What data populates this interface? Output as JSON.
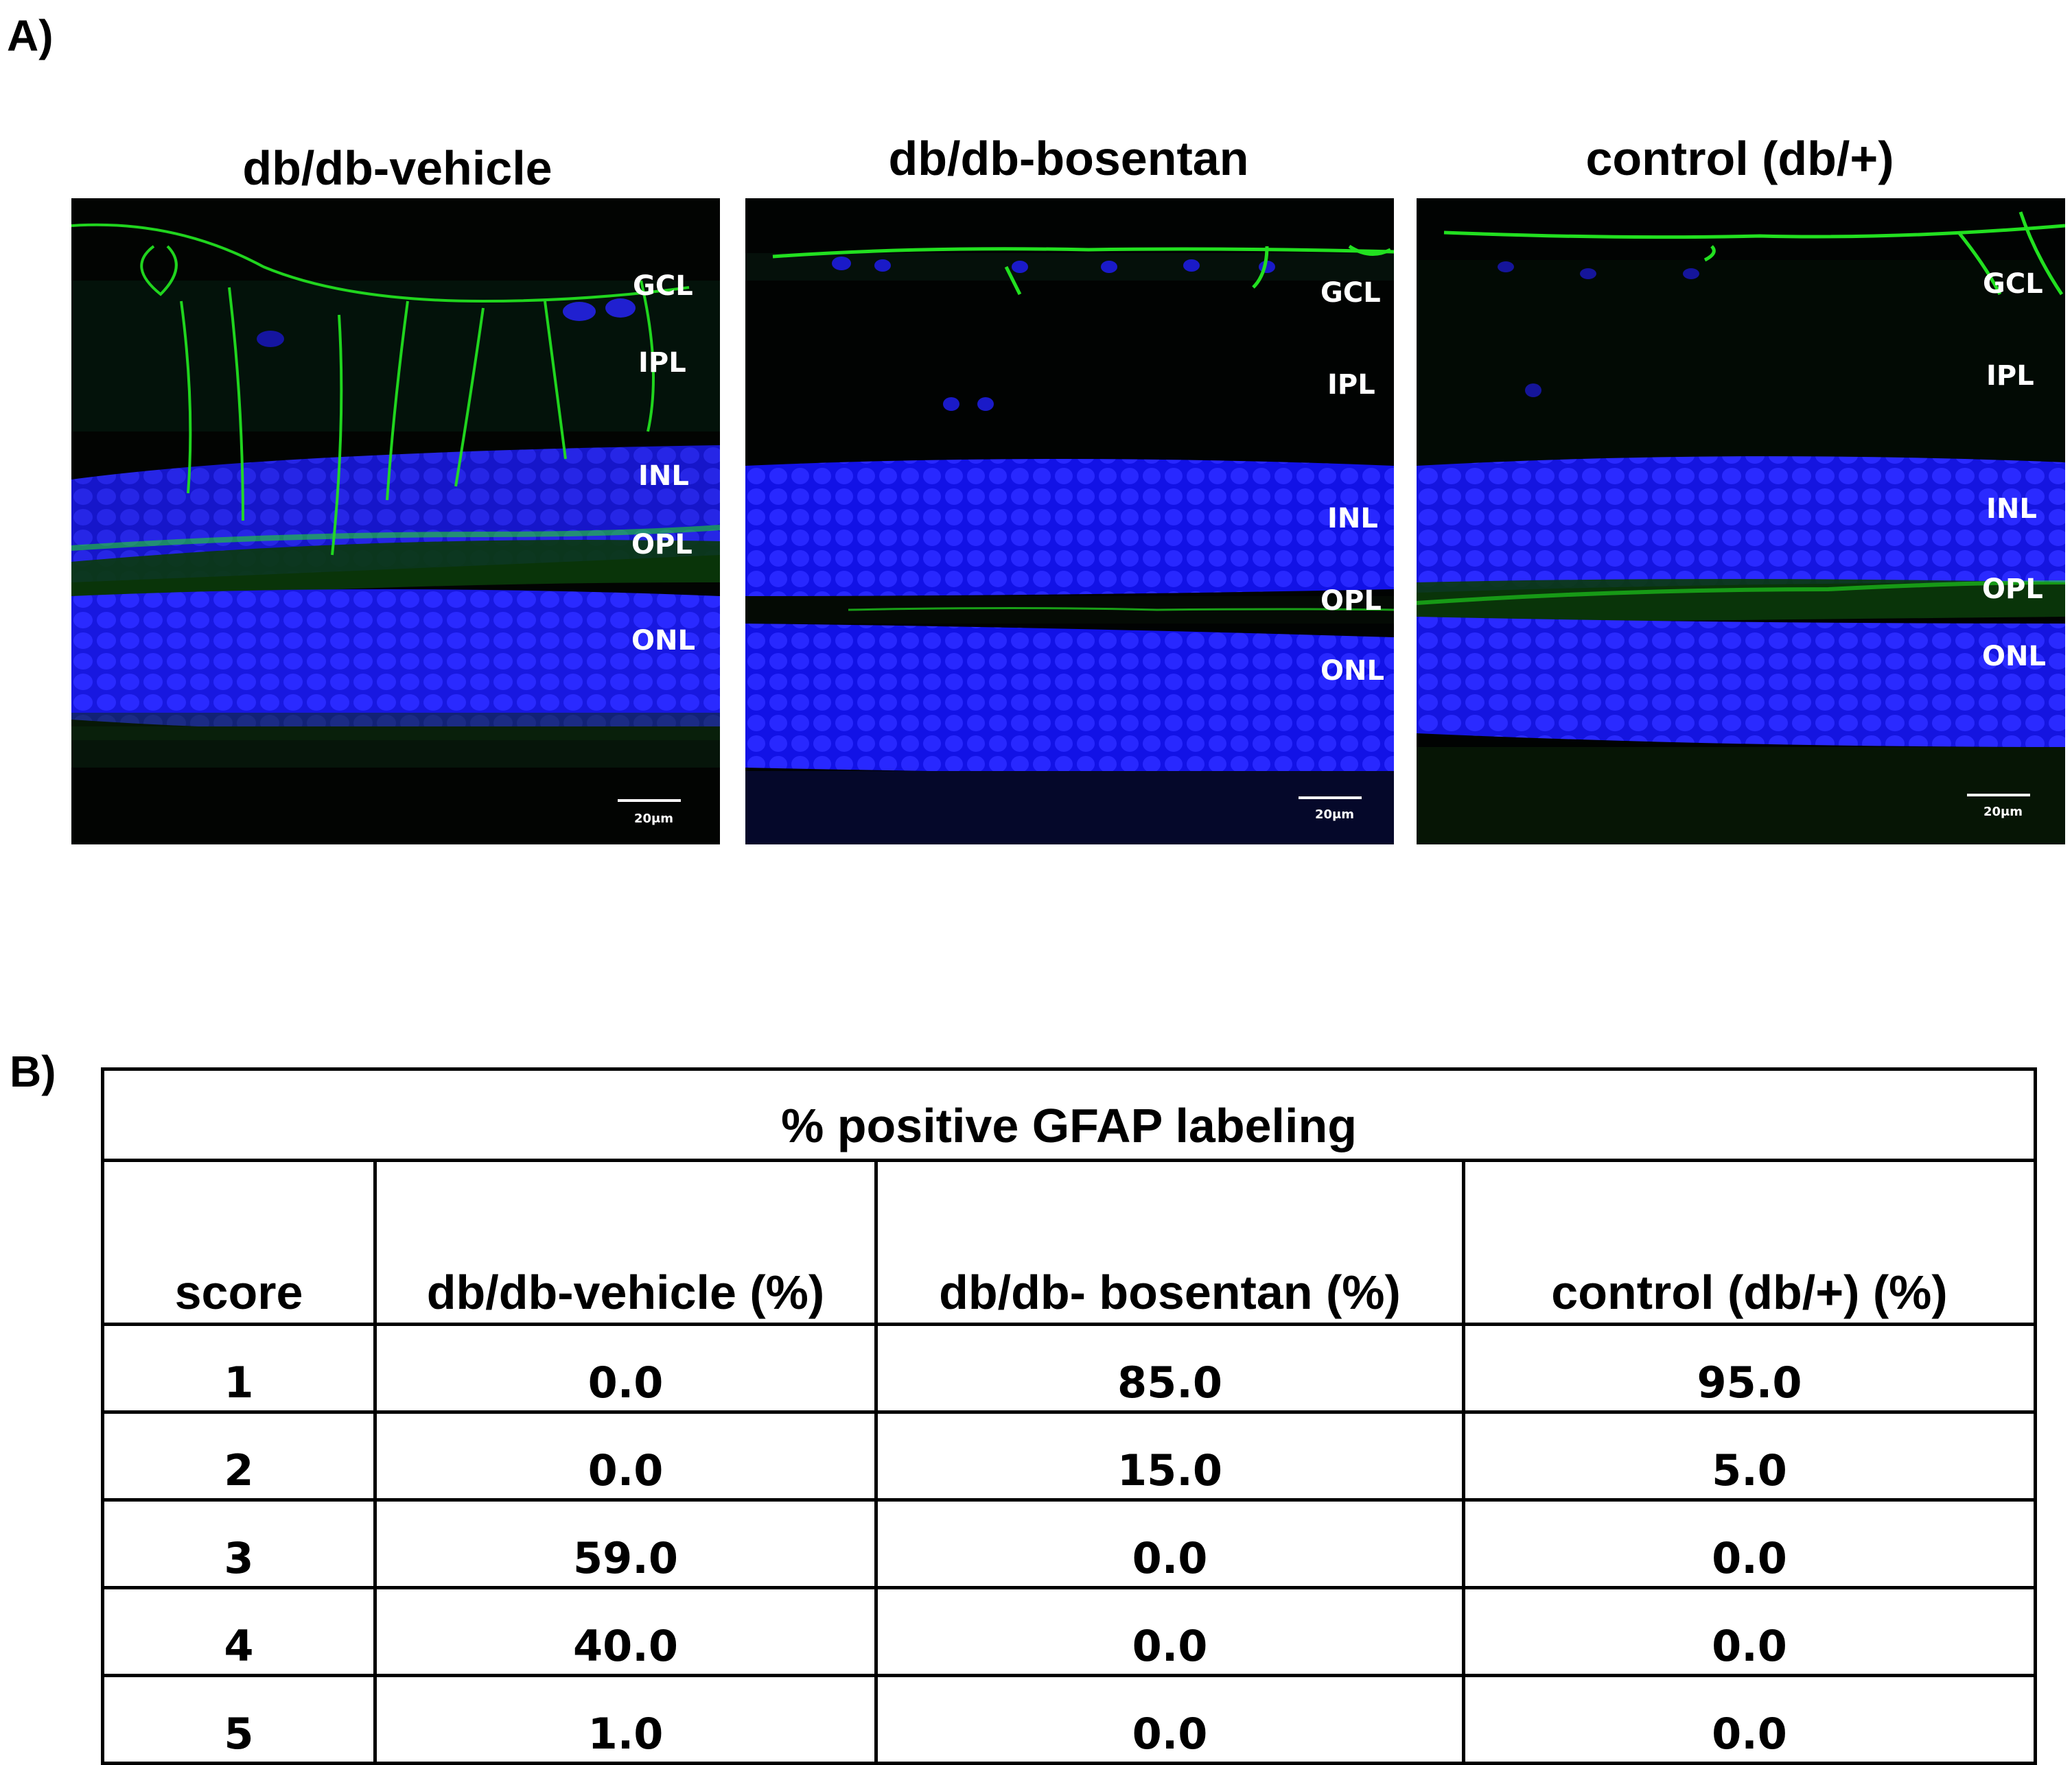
{
  "panel_a": {
    "letter": "A)",
    "images": [
      {
        "title": "db/db-vehicle",
        "layers": [
          "GCL",
          "IPL",
          "INL",
          "OPL",
          "ONL"
        ],
        "scale_bar": "20μm"
      },
      {
        "title": "db/db-bosentan",
        "layers": [
          "GCL",
          "IPL",
          "INL",
          "OPL",
          "ONL"
        ],
        "scale_bar": "20μm"
      },
      {
        "title": "control (db/+)",
        "layers": [
          "GCL",
          "IPL",
          "INL",
          "OPL",
          "ONL"
        ],
        "scale_bar": "20μm"
      }
    ]
  },
  "panel_b": {
    "letter": "B)",
    "table": {
      "caption": "% positive GFAP labeling",
      "headers": [
        "score",
        "db/db-vehicle (%)",
        "db/db- bosentan (%)",
        "control (db/+) (%)"
      ],
      "rows": [
        [
          "1",
          "0.0",
          "85.0",
          "95.0"
        ],
        [
          "2",
          "0.0",
          "15.0",
          "5.0"
        ],
        [
          "3",
          "59.0",
          "0.0",
          "0.0"
        ],
        [
          "4",
          "40.0",
          "0.0",
          "0.0"
        ],
        [
          "5",
          "1.0",
          "0.0",
          "0.0"
        ]
      ]
    }
  },
  "colors": {
    "nuclei_stain": "#1a1af5",
    "gfap_stain": "#22e020",
    "background": "#010302"
  }
}
